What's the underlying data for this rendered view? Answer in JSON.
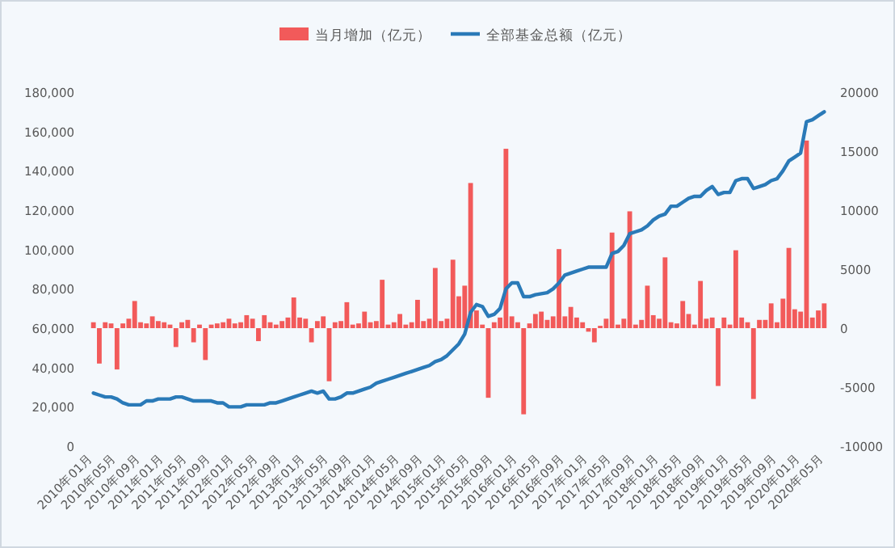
{
  "chart_data": {
    "type": "bar",
    "legend": "top",
    "categories": [
      "2010年01月",
      null,
      null,
      null,
      "2010年05月",
      null,
      null,
      null,
      "2010年09月",
      null,
      null,
      null,
      "2011年01月",
      null,
      null,
      null,
      "2011年05月",
      null,
      null,
      null,
      "2011年09月",
      null,
      null,
      null,
      "2012年01月",
      null,
      null,
      null,
      "2012年05月",
      null,
      null,
      null,
      "2012年09月",
      null,
      null,
      null,
      "2013年01月",
      null,
      null,
      null,
      "2013年05月",
      null,
      null,
      null,
      "2013年09月",
      null,
      null,
      null,
      "2014年01月",
      null,
      null,
      null,
      "2014年05月",
      null,
      null,
      null,
      "2014年09月",
      null,
      null,
      null,
      "2015年01月",
      null,
      null,
      null,
      "2015年05月",
      null,
      null,
      null,
      "2015年09月",
      null,
      null,
      null,
      "2016年01月",
      null,
      null,
      null,
      "2016年05月",
      null,
      null,
      null,
      "2016年09月",
      null,
      null,
      null,
      "2017年01月",
      null,
      null,
      null,
      "2017年05月",
      null,
      null,
      null,
      "2017年09月",
      null,
      null,
      null,
      "2018年01月",
      null,
      null,
      null,
      "2018年05月",
      null,
      null,
      null,
      "2018年09月",
      null,
      null,
      null,
      "2019年01月",
      null,
      null,
      null,
      "2019年05月",
      null,
      null,
      null,
      "2019年09月",
      null,
      null,
      null,
      "2020年01月",
      null,
      null,
      null,
      "2020年05月"
    ],
    "ylim": [
      0,
      180000
    ],
    "yticks": [
      0,
      {
        "value": 20000,
        "label": "20,000"
      },
      {
        "value": 40000,
        "label": "40,000"
      },
      {
        "value": 60000,
        "label": "60,000"
      },
      {
        "value": 80000,
        "label": "80,000"
      },
      {
        "value": 100000,
        "label": "100,000"
      },
      {
        "value": 120000,
        "label": "120,000"
      },
      {
        "value": 140000,
        "label": "140,000"
      },
      {
        "value": 160000,
        "label": "160,000"
      },
      {
        "value": 180000,
        "label": "180,000"
      }
    ],
    "y2lim": [
      -10000,
      20000
    ],
    "y2ticks": [
      -10000,
      -5000,
      0,
      5000,
      10000,
      15000,
      20000
    ],
    "series": [
      {
        "name": "当月增加（亿元）",
        "axis": "y2",
        "color": "#f25a5a",
        "values": [
          500,
          -3000,
          500,
          400,
          -3500,
          400,
          800,
          2300,
          500,
          400,
          1000,
          600,
          500,
          300,
          -1600,
          500,
          700,
          -1200,
          300,
          -2700,
          300,
          400,
          500,
          800,
          400,
          500,
          1100,
          800,
          -1100,
          1100,
          500,
          300,
          600,
          900,
          2600,
          900,
          800,
          -1200,
          600,
          1000,
          -4500,
          500,
          600,
          2200,
          300,
          400,
          1400,
          500,
          600,
          4100,
          300,
          500,
          1200,
          300,
          500,
          2400,
          600,
          800,
          5100,
          600,
          800,
          5800,
          2700,
          3600,
          12300,
          1500,
          300,
          -5900,
          500,
          900,
          15200,
          1000,
          500,
          -7300,
          400,
          1200,
          1400,
          700,
          1000,
          6700,
          1000,
          1800,
          900,
          500,
          -300,
          -1200,
          200,
          800,
          8100,
          300,
          800,
          9900,
          300,
          700,
          3600,
          1100,
          800,
          6000,
          500,
          400,
          2300,
          1200,
          300,
          4000,
          800,
          900,
          -4900,
          900,
          300,
          6600,
          900,
          500,
          -6000,
          700,
          700,
          2100,
          500,
          2500,
          6800,
          1600,
          1400,
          15900,
          900,
          1500,
          2100
        ]
      },
      {
        "name": "全部基金总额（亿元）",
        "type": "line",
        "axis": "y",
        "color": "#2a7ab8",
        "values": [
          27000,
          26000,
          25000,
          25000,
          24000,
          22000,
          21000,
          21000,
          21000,
          23000,
          23000,
          24000,
          24000,
          24000,
          25000,
          25000,
          24000,
          23000,
          23000,
          23000,
          23000,
          22000,
          22000,
          20000,
          20000,
          20000,
          21000,
          21000,
          21000,
          21000,
          22000,
          22000,
          23000,
          24000,
          25000,
          26000,
          27000,
          28000,
          27000,
          28000,
          24000,
          24000,
          25000,
          27000,
          27000,
          28000,
          29000,
          30000,
          32000,
          33000,
          34000,
          35000,
          36000,
          37000,
          38000,
          39000,
          40000,
          41000,
          43000,
          44000,
          46000,
          49000,
          52000,
          57000,
          68000,
          72000,
          71000,
          66000,
          67000,
          70000,
          80000,
          83000,
          83000,
          76000,
          76000,
          77000,
          77500,
          78000,
          80000,
          83000,
          87000,
          88000,
          89000,
          90000,
          91000,
          91000,
          91000,
          91000,
          98000,
          99000,
          102000,
          108000,
          109000,
          110000,
          112000,
          115000,
          117000,
          118000,
          122000,
          122000,
          124000,
          126000,
          127000,
          127000,
          130000,
          132000,
          128000,
          129000,
          129000,
          135000,
          136000,
          136000,
          131000,
          132000,
          133000,
          135000,
          136000,
          140000,
          145000,
          147000,
          149000,
          165000,
          166000,
          168000,
          170000
        ]
      }
    ]
  }
}
